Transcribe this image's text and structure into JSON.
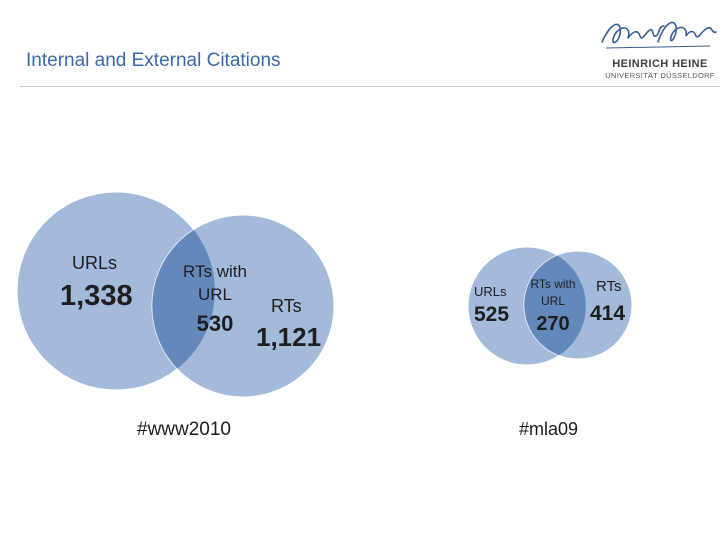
{
  "slide": {
    "title": "Internal and External Citations"
  },
  "logo": {
    "name": "HEINRICH HEINE",
    "subtitle": "UNIVERSITÄT DÜSSELDORF",
    "signature_text": "Heinrich Heine"
  },
  "colors": {
    "circle_fill": "#6b8fc4",
    "overlap_fill": "#3f6aa8",
    "title": "#3a6aa8"
  },
  "diagrams": [
    {
      "tag": "#www2010",
      "left": {
        "label": "URLs",
        "value": "1,338"
      },
      "overlap": {
        "label_line1": "RTs with",
        "label_line2": "URL",
        "value": "530"
      },
      "right": {
        "label": "RTs",
        "value": "1,121"
      }
    },
    {
      "tag": "#mla09",
      "left": {
        "label": "URLs",
        "value": "525"
      },
      "overlap": {
        "label_line1": "RTs with",
        "label_line2": "URL",
        "value": "270"
      },
      "right": {
        "label": "RTs",
        "value": "414"
      }
    }
  ]
}
